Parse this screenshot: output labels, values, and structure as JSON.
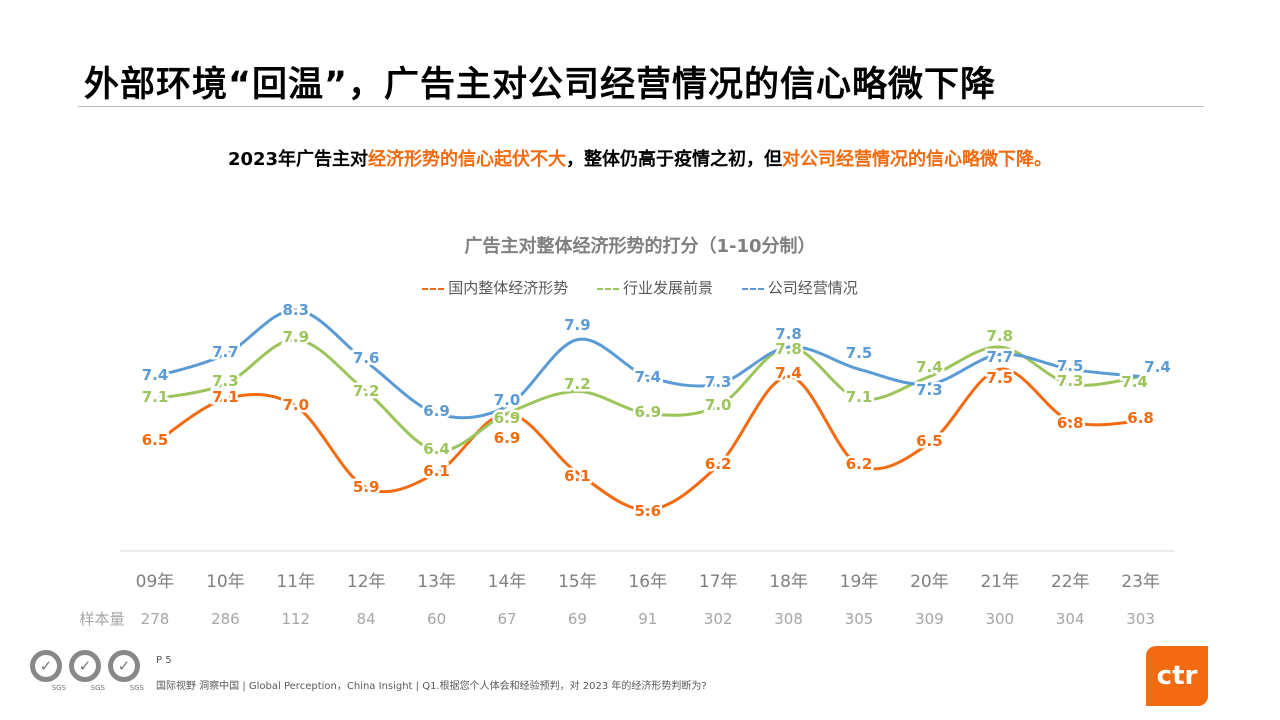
{
  "title": "外部环境“回温”，广告主对公司经营情况的信心略微下降",
  "subtitle": {
    "p1": "2023年广告主对",
    "p2": "经济形势的信心起伏不大",
    "p3": "，整体仍高于疫情之初，但",
    "p4": "对公司经营情况的信心略微下降。"
  },
  "footer": {
    "page": "P 5",
    "source": "国际视野  洞察中国 |  Global Perception，China Insight  | Q1.根据您个人体会和经验预判，对 2023 年的经济形势判断为?",
    "sgs": "SGS",
    "logo": "ctr"
  },
  "chart_data": {
    "type": "line",
    "title": "广告主对整体经济形势的打分（1-10分制）",
    "categories": [
      "09年",
      "10年",
      "11年",
      "12年",
      "13年",
      "14年",
      "15年",
      "16年",
      "17年",
      "18年",
      "19年",
      "20年",
      "21年",
      "22年",
      "23年"
    ],
    "sample_label": "样本量",
    "sample_sizes": [
      278,
      286,
      112,
      84,
      60,
      67,
      69,
      91,
      302,
      308,
      305,
      309,
      300,
      304,
      303
    ],
    "legend_position": "top",
    "grid": false,
    "series": [
      {
        "name": "国内整体经济形势",
        "color": "#f26b11",
        "values": [
          6.5,
          7.1,
          7.0,
          5.9,
          6.1,
          6.9,
          6.1,
          5.6,
          6.2,
          7.4,
          6.2,
          6.5,
          7.5,
          6.8,
          6.8
        ]
      },
      {
        "name": "行业发展前景",
        "color": "#9bc55a",
        "values": [
          7.1,
          7.3,
          7.9,
          7.2,
          6.4,
          6.9,
          7.2,
          6.9,
          7.0,
          7.8,
          7.1,
          7.4,
          7.8,
          7.3,
          7.4
        ]
      },
      {
        "name": "公司经营情况",
        "color": "#5b9bd5",
        "values": [
          7.4,
          7.7,
          8.3,
          7.6,
          6.9,
          7.0,
          7.9,
          7.4,
          7.3,
          7.8,
          7.5,
          7.3,
          7.7,
          7.5,
          7.4
        ]
      }
    ]
  }
}
